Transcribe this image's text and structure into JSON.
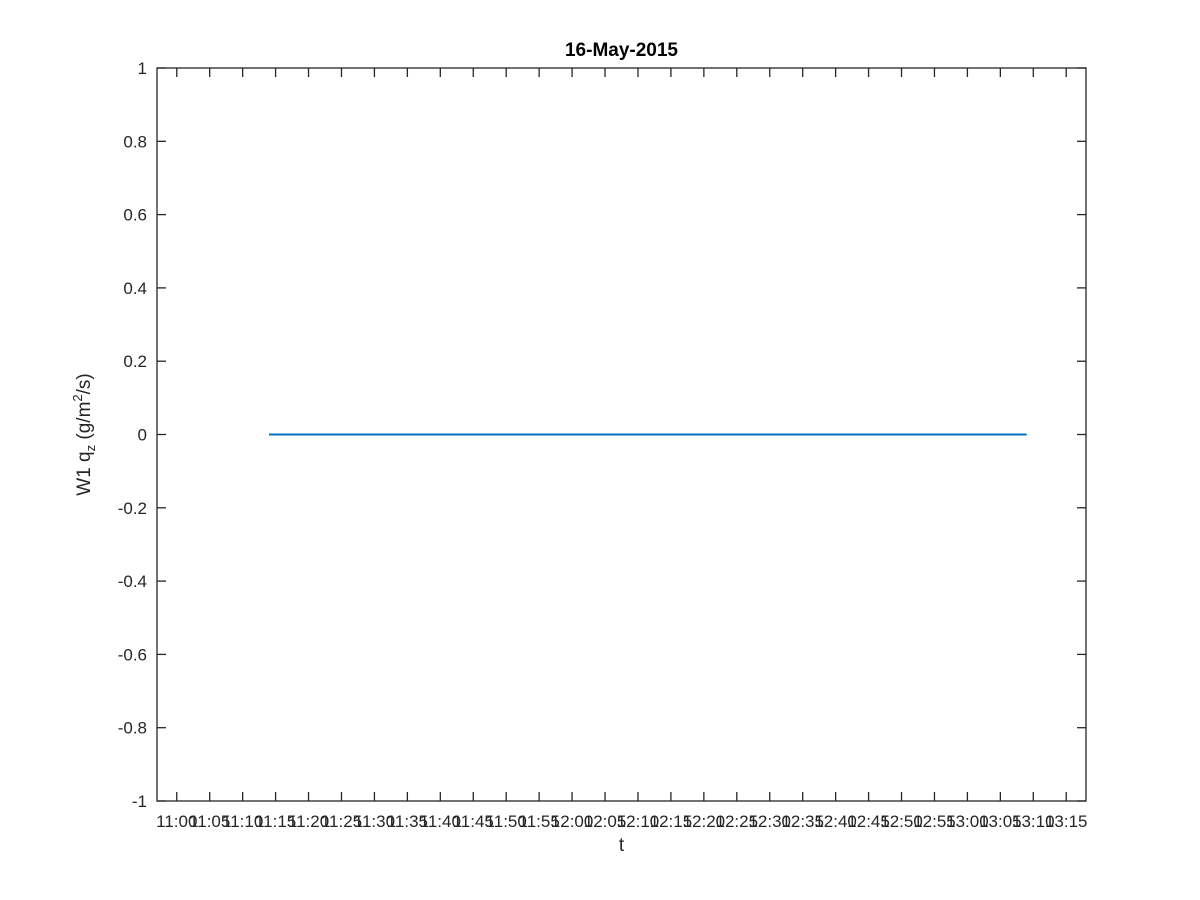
{
  "chart_data": {
    "type": "line",
    "title": "16-May-2015",
    "xlabel": "t",
    "ylabel": {
      "prefix": "W1 q",
      "sub": "z",
      "middle": " (g/m",
      "sup": "2",
      "suffix": "/s)"
    },
    "ylim": [
      -1,
      1
    ],
    "yticks": [
      -1,
      -0.8,
      -0.6,
      -0.4,
      -0.2,
      0,
      0.2,
      0.4,
      0.6,
      0.8,
      1
    ],
    "ytick_labels": [
      "-1",
      "-0.8",
      "-0.6",
      "-0.4",
      "-0.2",
      "0",
      "0.2",
      "0.4",
      "0.6",
      "0.8",
      "1"
    ],
    "xlim": [
      "10:57",
      "13:18"
    ],
    "xticks": [
      "11:00",
      "11:05",
      "11:10",
      "11:15",
      "11:20",
      "11:25",
      "11:30",
      "11:35",
      "11:40",
      "11:45",
      "11:50",
      "11:55",
      "12:00",
      "12:05",
      "12:10",
      "12:15",
      "12:20",
      "12:25",
      "12:30",
      "12:35",
      "12:40",
      "12:45",
      "12:50",
      "12:55",
      "13:00",
      "13:05",
      "13:10",
      "13:15"
    ],
    "xtick_labels": [
      "11:00",
      "11:05",
      "11:10",
      "11:15",
      "11:20",
      "11:25",
      "11:30",
      "11:35",
      "11:40",
      "11:45",
      "11:50",
      "11:55",
      "12:00",
      "12:05",
      "12:10",
      "12:15",
      "12:20",
      "12:25",
      "12:30",
      "12:35",
      "12:40",
      "12:45",
      "12:50",
      "12:55",
      "13:00",
      "13:05",
      "13:10",
      "13:15"
    ],
    "grid": false,
    "series": [
      {
        "x": [
          "11:14",
          "13:09"
        ],
        "y": [
          0,
          0
        ],
        "color": "#0072bd"
      }
    ]
  }
}
